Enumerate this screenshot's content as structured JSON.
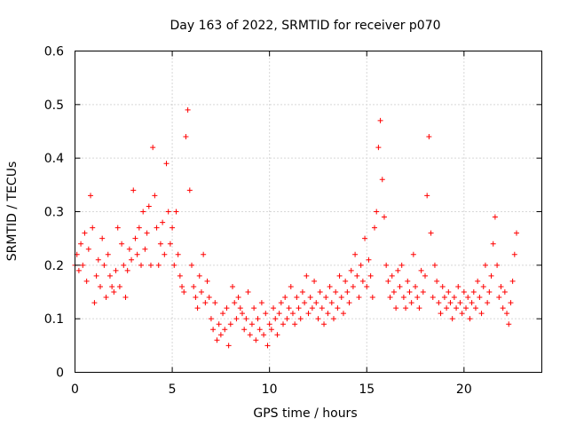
{
  "chart_data": {
    "type": "scatter",
    "title": "Day 163 of 2022, SRMTID for receiver p070",
    "xlabel": "GPS time / hours",
    "ylabel": "SRMTID / TECUs",
    "xlim": [
      0,
      24
    ],
    "ylim": [
      0,
      0.6
    ],
    "x_ticks": [
      0,
      5,
      10,
      15,
      20
    ],
    "x_tick_labels": [
      "0",
      "5",
      "10",
      "15",
      "20"
    ],
    "y_ticks": [
      0,
      0.1,
      0.2,
      0.3,
      0.4,
      0.5,
      0.6
    ],
    "y_tick_labels": [
      "0",
      "0.1",
      "0.2",
      "0.3",
      "0.4",
      "0.5",
      "0.6"
    ],
    "grid": true,
    "marker": "+",
    "series": [
      {
        "name": "SRMTID",
        "color": "#ff0000",
        "x": [
          0.0,
          0.1,
          0.2,
          0.3,
          0.4,
          0.5,
          0.6,
          0.7,
          0.8,
          0.9,
          1.0,
          1.1,
          1.2,
          1.3,
          1.4,
          1.5,
          1.6,
          1.7,
          1.8,
          1.9,
          2.0,
          2.1,
          2.2,
          2.3,
          2.4,
          2.5,
          2.6,
          2.7,
          2.8,
          2.9,
          3.0,
          3.1,
          3.2,
          3.3,
          3.4,
          3.5,
          3.6,
          3.7,
          3.8,
          3.9,
          4.0,
          4.1,
          4.2,
          4.3,
          4.4,
          4.5,
          4.6,
          4.7,
          4.8,
          4.9,
          5.0,
          5.1,
          5.2,
          5.3,
          5.4,
          5.5,
          5.6,
          5.7,
          5.8,
          5.9,
          6.0,
          6.1,
          6.2,
          6.3,
          6.4,
          6.5,
          6.6,
          6.7,
          6.8,
          6.9,
          7.0,
          7.1,
          7.2,
          7.3,
          7.4,
          7.5,
          7.6,
          7.7,
          7.8,
          7.9,
          8.0,
          8.1,
          8.2,
          8.3,
          8.4,
          8.5,
          8.6,
          8.7,
          8.8,
          8.9,
          9.0,
          9.1,
          9.2,
          9.3,
          9.4,
          9.5,
          9.6,
          9.7,
          9.8,
          9.9,
          10.0,
          10.1,
          10.2,
          10.3,
          10.4,
          10.5,
          10.6,
          10.7,
          10.8,
          10.9,
          11.0,
          11.1,
          11.2,
          11.3,
          11.4,
          11.5,
          11.6,
          11.7,
          11.8,
          11.9,
          12.0,
          12.1,
          12.2,
          12.3,
          12.4,
          12.5,
          12.6,
          12.7,
          12.8,
          12.9,
          13.0,
          13.1,
          13.2,
          13.3,
          13.4,
          13.5,
          13.6,
          13.7,
          13.8,
          13.9,
          14.0,
          14.1,
          14.2,
          14.3,
          14.4,
          14.5,
          14.6,
          14.7,
          14.8,
          14.9,
          15.0,
          15.1,
          15.2,
          15.3,
          15.4,
          15.5,
          15.6,
          15.7,
          15.8,
          15.9,
          16.0,
          16.1,
          16.2,
          16.3,
          16.4,
          16.5,
          16.6,
          16.7,
          16.8,
          16.9,
          17.0,
          17.1,
          17.2,
          17.3,
          17.4,
          17.5,
          17.6,
          17.7,
          17.8,
          17.9,
          18.0,
          18.1,
          18.2,
          18.3,
          18.4,
          18.5,
          18.6,
          18.7,
          18.8,
          18.9,
          19.0,
          19.1,
          19.2,
          19.3,
          19.4,
          19.5,
          19.6,
          19.7,
          19.8,
          19.9,
          20.0,
          20.1,
          20.2,
          20.3,
          20.4,
          20.5,
          20.6,
          20.7,
          20.8,
          20.9,
          21.0,
          21.1,
          21.2,
          21.3,
          21.4,
          21.5,
          21.6,
          21.7,
          21.8,
          21.9,
          22.0,
          22.1,
          22.2,
          22.3,
          22.4,
          22.5,
          22.6,
          22.7
        ],
        "y": [
          0.2,
          0.22,
          0.19,
          0.24,
          0.2,
          0.26,
          0.17,
          0.23,
          0.33,
          0.27,
          0.13,
          0.18,
          0.21,
          0.16,
          0.25,
          0.2,
          0.14,
          0.22,
          0.18,
          0.16,
          0.15,
          0.19,
          0.27,
          0.16,
          0.24,
          0.2,
          0.14,
          0.19,
          0.23,
          0.21,
          0.34,
          0.25,
          0.22,
          0.27,
          0.2,
          0.3,
          0.23,
          0.26,
          0.31,
          0.2,
          0.42,
          0.33,
          0.27,
          0.2,
          0.24,
          0.28,
          0.22,
          0.39,
          0.3,
          0.24,
          0.27,
          0.2,
          0.3,
          0.22,
          0.18,
          0.16,
          0.15,
          0.44,
          0.49,
          0.34,
          0.2,
          0.16,
          0.14,
          0.12,
          0.18,
          0.15,
          0.22,
          0.13,
          0.17,
          0.14,
          0.1,
          0.08,
          0.13,
          0.06,
          0.09,
          0.07,
          0.11,
          0.08,
          0.12,
          0.05,
          0.09,
          0.16,
          0.13,
          0.1,
          0.14,
          0.12,
          0.11,
          0.08,
          0.1,
          0.15,
          0.07,
          0.09,
          0.12,
          0.06,
          0.1,
          0.08,
          0.13,
          0.07,
          0.11,
          0.05,
          0.09,
          0.08,
          0.12,
          0.1,
          0.07,
          0.11,
          0.13,
          0.09,
          0.14,
          0.1,
          0.12,
          0.16,
          0.11,
          0.09,
          0.14,
          0.12,
          0.1,
          0.15,
          0.13,
          0.18,
          0.11,
          0.14,
          0.12,
          0.17,
          0.13,
          0.1,
          0.15,
          0.12,
          0.09,
          0.14,
          0.11,
          0.16,
          0.13,
          0.1,
          0.15,
          0.12,
          0.18,
          0.14,
          0.11,
          0.17,
          0.15,
          0.13,
          0.19,
          0.16,
          0.22,
          0.18,
          0.14,
          0.2,
          0.17,
          0.25,
          0.16,
          0.21,
          0.18,
          0.14,
          0.27,
          0.3,
          0.42,
          0.47,
          0.36,
          0.29,
          0.2,
          0.17,
          0.14,
          0.18,
          0.15,
          0.12,
          0.19,
          0.16,
          0.2,
          0.14,
          0.12,
          0.17,
          0.15,
          0.13,
          0.22,
          0.16,
          0.14,
          0.12,
          0.19,
          0.15,
          0.18,
          0.33,
          0.44,
          0.26,
          0.14,
          0.2,
          0.17,
          0.13,
          0.11,
          0.16,
          0.14,
          0.12,
          0.15,
          0.13,
          0.1,
          0.14,
          0.12,
          0.16,
          0.13,
          0.11,
          0.15,
          0.12,
          0.14,
          0.1,
          0.13,
          0.15,
          0.12,
          0.17,
          0.14,
          0.11,
          0.16,
          0.2,
          0.13,
          0.15,
          0.18,
          0.24,
          0.29,
          0.2,
          0.14,
          0.16,
          0.12,
          0.15,
          0.11,
          0.09,
          0.13,
          0.17,
          0.22,
          0.26
        ]
      }
    ]
  }
}
